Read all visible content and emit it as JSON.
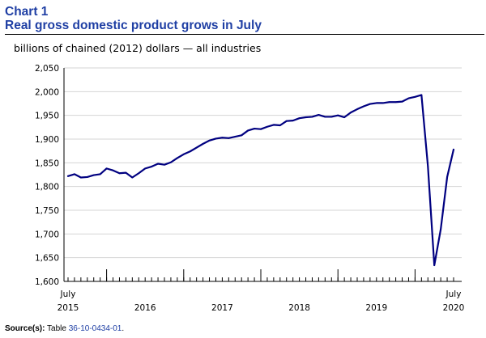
{
  "header": {
    "chart_label": "Chart 1",
    "title": "Real gross domestic product grows in July",
    "subtitle": "billions of chained (2012) dollars — all industries"
  },
  "source": {
    "label": "Source(s):",
    "text": " Table ",
    "link_text": "36-10-0434-01",
    "suffix": "."
  },
  "colors": {
    "line": "#000080",
    "title": "#1f3fa4",
    "axis": "#000000"
  },
  "chart_data": {
    "type": "line",
    "title": "Real gross domestic product grows in July",
    "ylabel": "billions of chained (2012) dollars — all industries",
    "xlabel": "",
    "ylim": [
      1600,
      2050
    ],
    "yticks": [
      1600,
      1650,
      1700,
      1750,
      1800,
      1850,
      1900,
      1950,
      2000,
      2050
    ],
    "ytick_labels": [
      "1,600",
      "1,650",
      "1,700",
      "1,750",
      "1,800",
      "1,850",
      "1,900",
      "1,950",
      "2,000",
      "2,050"
    ],
    "x_start": "2015-07",
    "x_end": "2020-07",
    "xtick_labels": [
      {
        "month_index": 0,
        "line1": "July",
        "line2": "2015"
      },
      {
        "month_index": 12,
        "line1": "",
        "line2": "2016"
      },
      {
        "month_index": 24,
        "line1": "",
        "line2": "2017"
      },
      {
        "month_index": 36,
        "line1": "",
        "line2": "2018"
      },
      {
        "month_index": 48,
        "line1": "",
        "line2": "2019"
      },
      {
        "month_index": 60,
        "line1": "July",
        "line2": "2020"
      }
    ],
    "major_tick_month_indices": [
      6,
      18,
      30,
      42,
      54
    ],
    "series": [
      {
        "name": "All industries",
        "values": [
          1822,
          1826,
          1819,
          1820,
          1824,
          1826,
          1838,
          1834,
          1828,
          1829,
          1819,
          1828,
          1838,
          1842,
          1848,
          1846,
          1851,
          1860,
          1868,
          1874,
          1882,
          1890,
          1897,
          1901,
          1903,
          1902,
          1905,
          1908,
          1918,
          1922,
          1921,
          1926,
          1930,
          1929,
          1938,
          1939,
          1944,
          1946,
          1947,
          1951,
          1947,
          1947,
          1950,
          1946,
          1956,
          1963,
          1969,
          1974,
          1976,
          1976,
          1978,
          1978,
          1979,
          1986,
          1989,
          1993,
          1843,
          1634,
          1710,
          1820,
          1878
        ]
      }
    ]
  }
}
